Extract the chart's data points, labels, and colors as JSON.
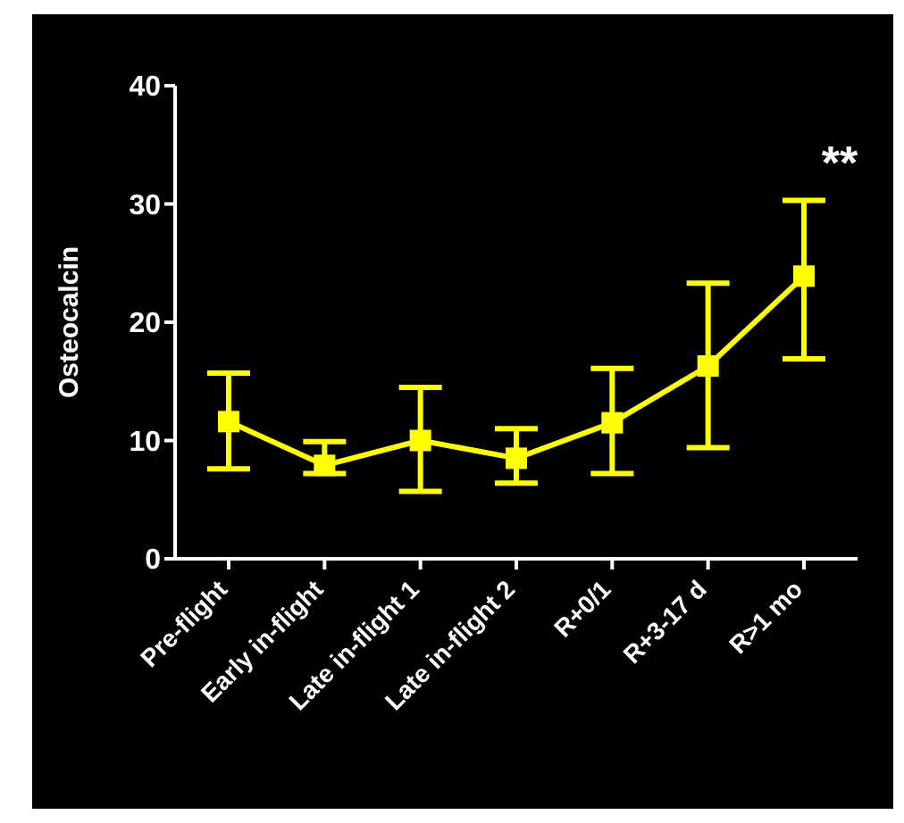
{
  "chart_data": {
    "type": "line",
    "ylabel": "Osteocalcin",
    "categories": [
      "Pre-flight",
      "Early in-flight",
      "Late in-flight 1",
      "Late in-flight 2",
      "R+0/1",
      "R+3-17 d",
      "R>1 mo"
    ],
    "series": [
      {
        "color": "#ffff00",
        "values": [
          11.6,
          7.9,
          10.0,
          8.5,
          11.5,
          16.3,
          23.9
        ],
        "errors": [
          [
            7.6,
            15.7
          ],
          [
            7.2,
            9.9
          ],
          [
            5.7,
            14.5
          ],
          [
            6.4,
            11.0
          ],
          [
            7.2,
            16.1
          ],
          [
            9.4,
            23.3
          ],
          [
            16.9,
            30.3
          ]
        ]
      }
    ],
    "ylim": [
      0,
      40
    ],
    "yticks": [
      0,
      10,
      20,
      30,
      40
    ],
    "marker": "square",
    "line_style": "solid",
    "annotations": [
      "**"
    ]
  }
}
